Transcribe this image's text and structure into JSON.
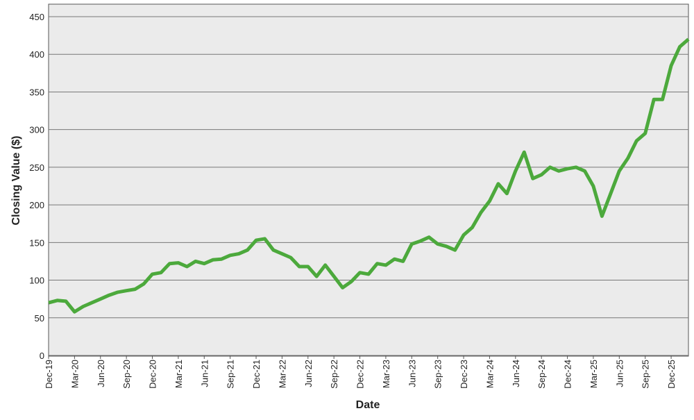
{
  "chart_data": {
    "type": "line",
    "xlabel": "Date",
    "ylabel": "Closing Value ($)",
    "x": [
      "Dec-19",
      null,
      null,
      "Mar-20",
      null,
      null,
      "Jun-20",
      null,
      null,
      "Sep-20",
      null,
      null,
      "Dec-20",
      null,
      null,
      "Mar-21",
      null,
      null,
      "Jun-21",
      null,
      null,
      "Sep-21",
      null,
      null,
      "Dec-21",
      null,
      null,
      "Mar-22",
      null,
      null,
      "Jun-22",
      null,
      null,
      "Sep-22",
      null,
      null,
      "Dec-22",
      null,
      null,
      "Mar-23",
      null,
      null,
      "Jun-23",
      null,
      null,
      "Sep-23",
      null,
      null,
      "Dec-23",
      null,
      null,
      "Mar-24",
      null,
      null,
      "Jun-24",
      null,
      null,
      "Sep-24",
      null,
      null,
      "Dec-24",
      null,
      null,
      "Mar-25",
      null,
      null,
      "Jun-25",
      null,
      null,
      "Sep-25",
      null,
      null,
      "Dec-25",
      null,
      null
    ],
    "values": [
      70,
      73,
      72,
      58,
      65,
      70,
      75,
      80,
      84,
      86,
      88,
      95,
      108,
      110,
      122,
      123,
      118,
      125,
      122,
      127,
      128,
      133,
      135,
      140,
      153,
      155,
      140,
      135,
      130,
      118,
      118,
      105,
      120,
      105,
      90,
      98,
      110,
      108,
      122,
      120,
      128,
      125,
      148,
      152,
      157,
      148,
      145,
      140,
      160,
      170,
      190,
      205,
      228,
      215,
      245,
      270,
      235,
      240,
      250,
      245,
      248,
      250,
      245,
      225,
      185,
      215,
      245,
      262,
      285,
      295,
      340,
      340,
      385,
      410,
      420
    ],
    "color": "#4ca93c",
    "ylim": [
      0,
      450
    ],
    "yticks": [
      0,
      50,
      100,
      150,
      200,
      250,
      300,
      350,
      400,
      450
    ],
    "grid": true
  }
}
